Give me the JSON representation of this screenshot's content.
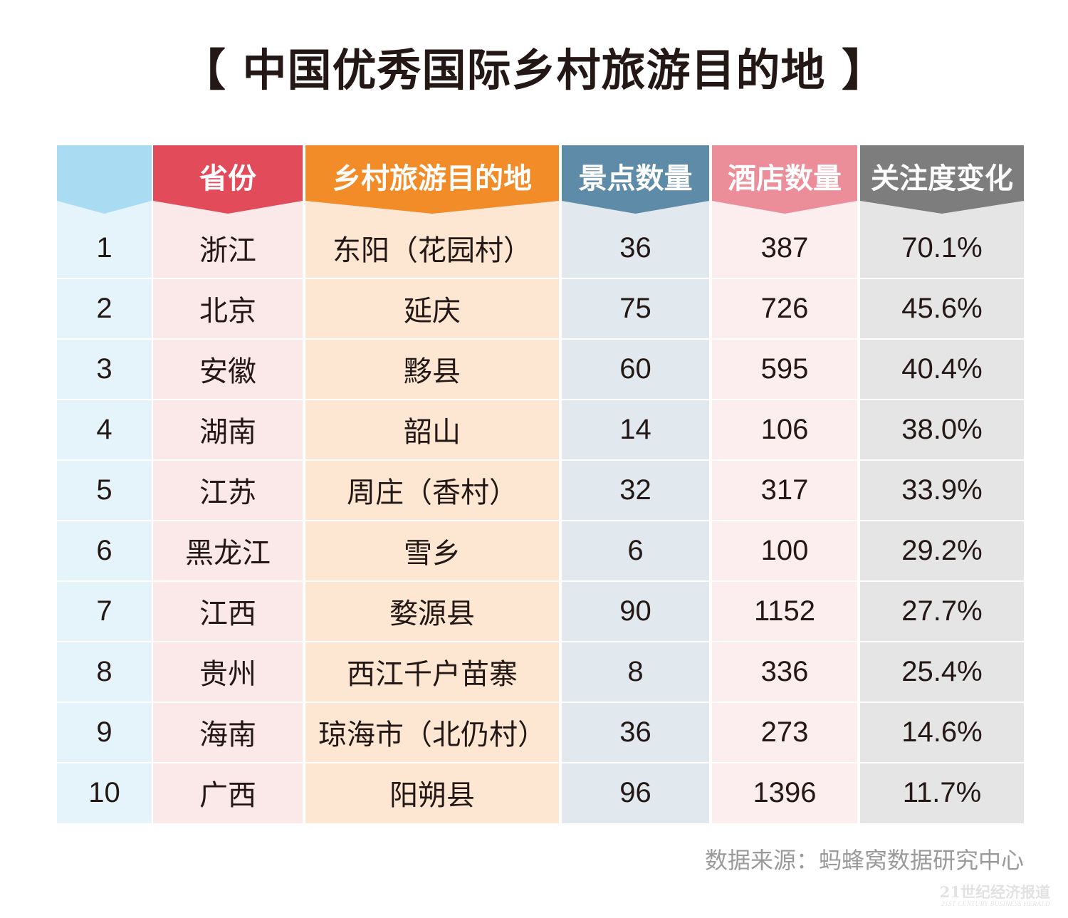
{
  "title": "【 中国优秀国际乡村旅游目的地 】",
  "colors": {
    "rank": {
      "header": "#a9dcf2",
      "body": "#e5f3fb"
    },
    "province": {
      "header": "#e14b5a",
      "body": "#fbe9ea"
    },
    "destination": {
      "header": "#f28c28",
      "body": "#fde6d2"
    },
    "attractions": {
      "header": "#5e8ca8",
      "body": "#e1e8ee"
    },
    "hotels": {
      "header": "#ec8e99",
      "body": "#fcedee"
    },
    "change": {
      "header": "#7d7d7d",
      "body": "#e5e5e5"
    }
  },
  "chart_data": {
    "type": "table",
    "title": "【 中国优秀国际乡村旅游目的地 】",
    "columns": [
      "",
      "省份",
      "乡村旅游目的地",
      "景点数量",
      "酒店数量",
      "关注度变化"
    ],
    "rows": [
      [
        "1",
        "浙江",
        "东阳（花园村）",
        "36",
        "387",
        "70.1%"
      ],
      [
        "2",
        "北京",
        "延庆",
        "75",
        "726",
        "45.6%"
      ],
      [
        "3",
        "安徽",
        "黟县",
        "60",
        "595",
        "40.4%"
      ],
      [
        "4",
        "湖南",
        "韶山",
        "14",
        "106",
        "38.0%"
      ],
      [
        "5",
        "江苏",
        "周庄（香村）",
        "32",
        "317",
        "33.9%"
      ],
      [
        "6",
        "黑龙江",
        "雪乡",
        "6",
        "100",
        "29.2%"
      ],
      [
        "7",
        "江西",
        "婺源县",
        "90",
        "1152",
        "27.7%"
      ],
      [
        "8",
        "贵州",
        "西江千户苗寨",
        "8",
        "336",
        "25.4%"
      ],
      [
        "9",
        "海南",
        "琼海市（北仍村）",
        "36",
        "273",
        "14.6%"
      ],
      [
        "10",
        "广西",
        "阳朔县",
        "96",
        "1396",
        "11.7%"
      ]
    ]
  },
  "source": "数据来源：蚂蜂窝数据研究中心",
  "watermark": {
    "cn": "21世纪经济报道",
    "en": "21ST CENTURY BUSINESS HERALD"
  }
}
